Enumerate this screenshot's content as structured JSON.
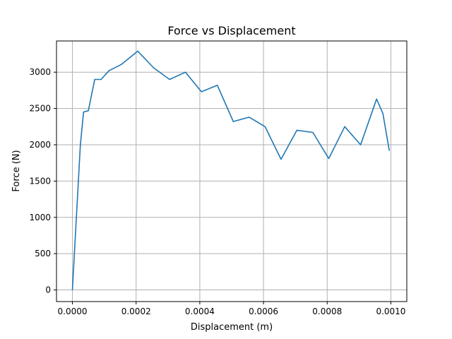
{
  "chart_data": {
    "type": "line",
    "title": "Force vs Displacement",
    "xlabel": "Displacement (m)",
    "ylabel": "Force (N)",
    "xlim": [
      -5e-05,
      0.00105
    ],
    "ylim": [
      -160,
      3430
    ],
    "xticks": [
      0.0,
      0.0002,
      0.0004,
      0.0006,
      0.0008,
      0.001
    ],
    "xtick_labels": [
      "0.0000",
      "0.0002",
      "0.0004",
      "0.0006",
      "0.0008",
      "0.0010"
    ],
    "yticks": [
      0,
      500,
      1000,
      1500,
      2000,
      2500,
      3000
    ],
    "ytick_labels": [
      "0",
      "500",
      "1000",
      "1500",
      "2000",
      "2500",
      "3000"
    ],
    "grid": true,
    "series": [
      {
        "color": "#1f77b4",
        "x": [
          0.0,
          2.5e-05,
          3.5e-05,
          5e-05,
          7e-05,
          9e-05,
          0.000115,
          0.000155,
          0.000205,
          0.000255,
          0.000305,
          0.000355,
          0.000405,
          0.000455,
          0.000505,
          0.000555,
          0.000605,
          0.000655,
          0.000705,
          0.000755,
          0.000805,
          0.000855,
          0.000905,
          0.000955,
          0.000975,
          0.000995
        ],
        "y": [
          0,
          2000,
          2450,
          2470,
          2900,
          2900,
          3020,
          3110,
          3290,
          3060,
          2900,
          3000,
          2730,
          2820,
          2320,
          2380,
          2250,
          1800,
          2200,
          2170,
          1810,
          2250,
          2000,
          2630,
          2430,
          1920
        ]
      }
    ]
  }
}
